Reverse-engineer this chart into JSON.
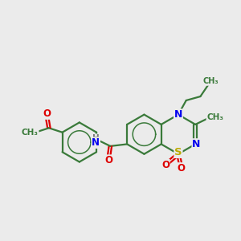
{
  "bg_color": "#ebebeb",
  "bond_color": "#3a7a3a",
  "bond_width": 1.6,
  "N_color": "#0000ee",
  "O_color": "#dd0000",
  "S_color": "#bbaa00",
  "C_color": "#3a7a3a",
  "H_color": "#777777",
  "font_size": 8.5,
  "figsize": [
    3.0,
    3.0
  ],
  "dpi": 100,
  "xlim": [
    0,
    12
  ],
  "ylim": [
    0,
    12
  ]
}
